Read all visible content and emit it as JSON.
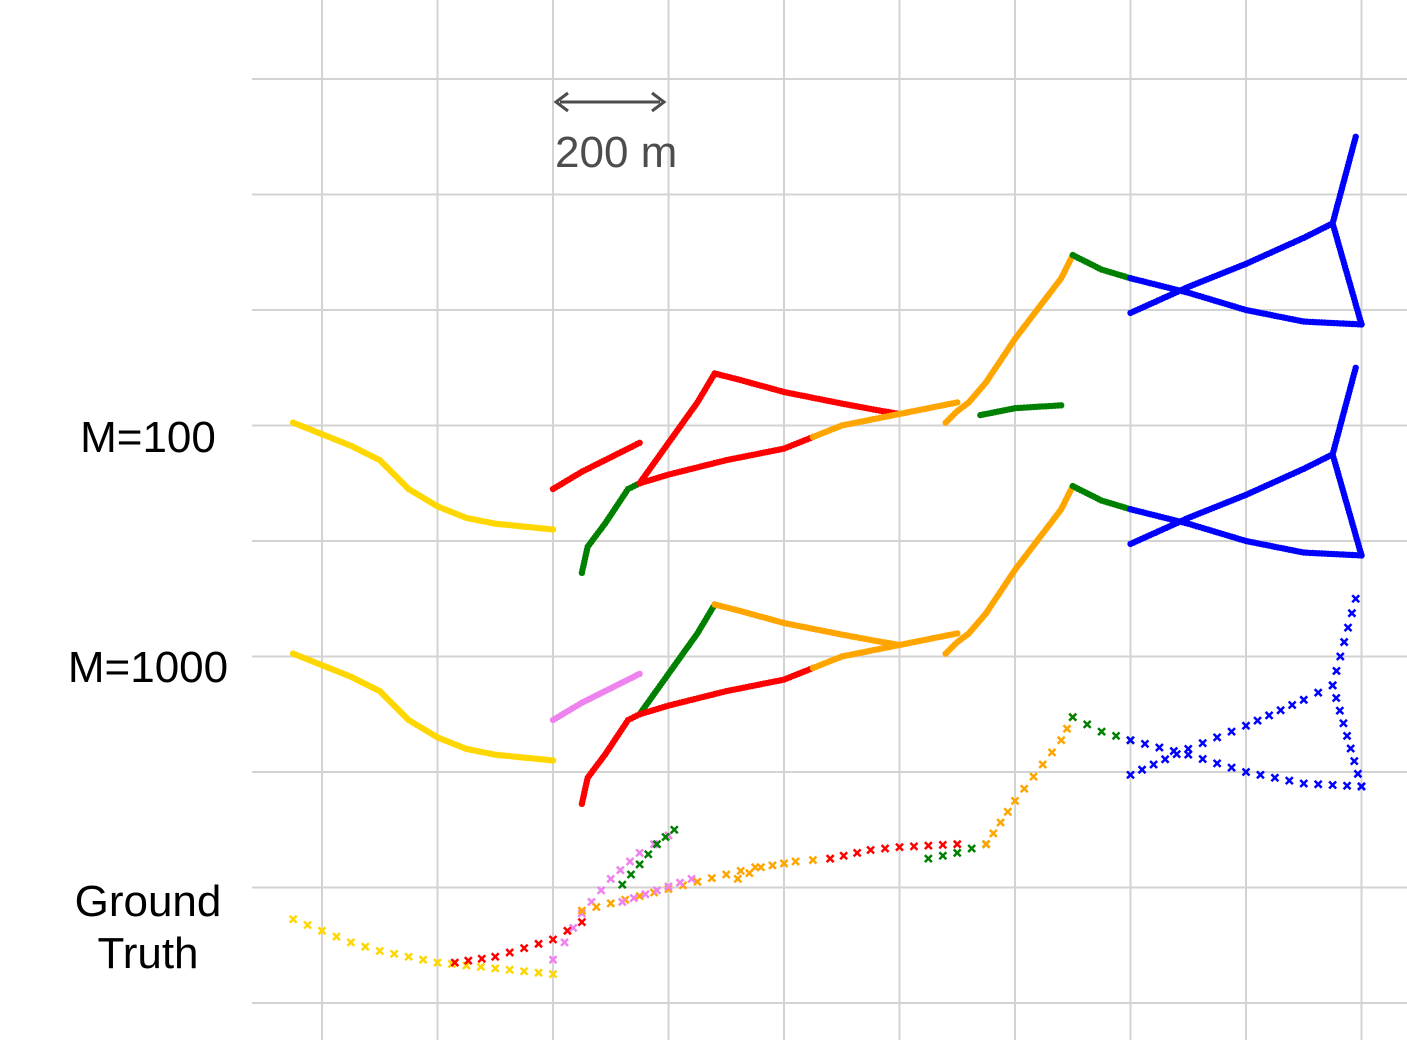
{
  "chart_data": {
    "type": "scatter",
    "title": "",
    "xlabel": "",
    "ylabel": "",
    "scale_bar": {
      "label": "200 m",
      "length_m": 200
    },
    "panels": [
      {
        "label": "M=100",
        "marker": "dot",
        "offset_m": 800,
        "segments": [
          {
            "color": "yellow",
            "points": [
              [
                -50,
                205
              ],
              [
                0,
                185
              ],
              [
                50,
                165
              ],
              [
                100,
                140
              ],
              [
                150,
                90
              ],
              [
                200,
                60
              ],
              [
                250,
                40
              ],
              [
                300,
                30
              ],
              [
                350,
                25
              ],
              [
                400,
                20
              ]
            ]
          },
          {
            "color": "red",
            "points": [
              [
                400,
                90
              ],
              [
                450,
                120
              ],
              [
                500,
                145
              ],
              [
                550,
                170
              ]
            ]
          },
          {
            "color": "green",
            "points": [
              [
                450,
                -55
              ],
              [
                460,
                -10
              ],
              [
                490,
                30
              ],
              [
                530,
                90
              ],
              [
                550,
                100
              ]
            ]
          },
          {
            "color": "red",
            "points": [
              [
                550,
                100
              ],
              [
                600,
                170
              ],
              [
                650,
                240
              ],
              [
                680,
                290
              ]
            ]
          },
          {
            "color": "red",
            "points": [
              [
                680,
                290
              ],
              [
                720,
                280
              ],
              [
                800,
                258
              ],
              [
                900,
                238
              ],
              [
                970,
                225
              ],
              [
                1000,
                220
              ]
            ]
          },
          {
            "color": "red",
            "points": [
              [
                550,
                100
              ],
              [
                600,
                115
              ],
              [
                700,
                140
              ],
              [
                800,
                160
              ],
              [
                850,
                180
              ]
            ]
          },
          {
            "color": "orange",
            "points": [
              [
                850,
                180
              ],
              [
                900,
                200
              ],
              [
                1000,
                220
              ],
              [
                1100,
                240
              ]
            ]
          },
          {
            "color": "orange",
            "points": [
              [
                1080,
                205
              ],
              [
                1100,
                225
              ],
              [
                1120,
                240
              ],
              [
                1150,
                275
              ]
            ]
          },
          {
            "color": "green",
            "points": [
              [
                1140,
                218
              ],
              [
                1200,
                230
              ],
              [
                1280,
                235
              ]
            ]
          },
          {
            "color": "orange",
            "points": [
              [
                1150,
                275
              ],
              [
                1200,
                350
              ],
              [
                1280,
                455
              ],
              [
                1300,
                495
              ]
            ]
          },
          {
            "color": "green",
            "points": [
              [
                1300,
                495
              ],
              [
                1350,
                470
              ],
              [
                1400,
                455
              ]
            ]
          },
          {
            "color": "blue",
            "points": [
              [
                1400,
                455
              ],
              [
                1500,
                430
              ],
              [
                1600,
                400
              ],
              [
                1700,
                380
              ],
              [
                1800,
                375
              ]
            ]
          },
          {
            "color": "blue",
            "points": [
              [
                1400,
                395
              ],
              [
                1500,
                440
              ],
              [
                1600,
                480
              ],
              [
                1700,
                525
              ],
              [
                1750,
                550
              ]
            ]
          },
          {
            "color": "blue",
            "points": [
              [
                1790,
                700
              ],
              [
                1750,
                550
              ],
              [
                1800,
                375
              ]
            ]
          }
        ]
      },
      {
        "label": "M=1000",
        "marker": "dot",
        "offset_m": 400,
        "segments": [
          {
            "color": "yellow",
            "points": [
              [
                -50,
                205
              ],
              [
                0,
                185
              ],
              [
                50,
                165
              ],
              [
                100,
                140
              ],
              [
                150,
                90
              ],
              [
                200,
                60
              ],
              [
                250,
                40
              ],
              [
                300,
                30
              ],
              [
                350,
                25
              ],
              [
                400,
                20
              ]
            ]
          },
          {
            "color": "violet",
            "points": [
              [
                400,
                90
              ],
              [
                450,
                120
              ],
              [
                500,
                145
              ],
              [
                550,
                170
              ]
            ]
          },
          {
            "color": "red",
            "points": [
              [
                450,
                -55
              ],
              [
                460,
                -10
              ],
              [
                490,
                30
              ],
              [
                530,
                90
              ],
              [
                550,
                100
              ]
            ]
          },
          {
            "color": "green",
            "points": [
              [
                550,
                100
              ],
              [
                600,
                170
              ],
              [
                650,
                240
              ],
              [
                680,
                290
              ]
            ]
          },
          {
            "color": "orange",
            "points": [
              [
                680,
                290
              ],
              [
                720,
                280
              ],
              [
                800,
                258
              ],
              [
                900,
                238
              ],
              [
                970,
                225
              ],
              [
                1000,
                220
              ]
            ]
          },
          {
            "color": "red",
            "points": [
              [
                550,
                100
              ],
              [
                600,
                115
              ],
              [
                700,
                140
              ],
              [
                800,
                160
              ],
              [
                850,
                180
              ]
            ]
          },
          {
            "color": "orange",
            "points": [
              [
                850,
                180
              ],
              [
                900,
                200
              ],
              [
                1000,
                220
              ],
              [
                1100,
                240
              ]
            ]
          },
          {
            "color": "orange",
            "points": [
              [
                1080,
                205
              ],
              [
                1100,
                225
              ],
              [
                1120,
                240
              ],
              [
                1150,
                275
              ]
            ]
          },
          {
            "color": "orange",
            "points": [
              [
                1150,
                275
              ],
              [
                1200,
                350
              ],
              [
                1280,
                455
              ],
              [
                1300,
                495
              ]
            ]
          },
          {
            "color": "green",
            "points": [
              [
                1300,
                495
              ],
              [
                1350,
                470
              ],
              [
                1400,
                455
              ]
            ]
          },
          {
            "color": "blue",
            "points": [
              [
                1400,
                455
              ],
              [
                1500,
                430
              ],
              [
                1600,
                400
              ],
              [
                1700,
                380
              ],
              [
                1800,
                375
              ]
            ]
          },
          {
            "color": "blue",
            "points": [
              [
                1400,
                395
              ],
              [
                1500,
                440
              ],
              [
                1600,
                480
              ],
              [
                1700,
                525
              ],
              [
                1750,
                550
              ]
            ]
          },
          {
            "color": "blue",
            "points": [
              [
                1790,
                700
              ],
              [
                1750,
                550
              ],
              [
                1800,
                375
              ]
            ]
          }
        ]
      },
      {
        "label": "Ground\nTruth",
        "marker": "cross",
        "offset_m": 0,
        "segments": [
          {
            "color": "yellow",
            "points": [
              [
                -50,
                145
              ],
              [
                0,
                125
              ],
              [
                50,
                105
              ],
              [
                100,
                90
              ],
              [
                150,
                80
              ],
              [
                200,
                70
              ],
              [
                250,
                65
              ],
              [
                300,
                60
              ],
              [
                350,
                55
              ],
              [
                400,
                50
              ]
            ]
          },
          {
            "color": "red",
            "points": [
              [
                230,
                70
              ],
              [
                300,
                80
              ],
              [
                400,
                110
              ],
              [
                450,
                140
              ]
            ]
          },
          {
            "color": "violet",
            "points": [
              [
                400,
                75
              ],
              [
                420,
                105
              ],
              [
                450,
                155
              ],
              [
                500,
                215
              ],
              [
                550,
                260
              ],
              [
                600,
                290
              ]
            ]
          },
          {
            "color": "green",
            "points": [
              [
                520,
                205
              ],
              [
                550,
                240
              ],
              [
                580,
                275
              ],
              [
                610,
                300
              ]
            ]
          },
          {
            "color": "orange",
            "points": [
              [
                450,
                160
              ],
              [
                550,
                185
              ],
              [
                650,
                210
              ],
              [
                750,
                235
              ]
            ]
          },
          {
            "color": "violet",
            "points": [
              [
                520,
                175
              ],
              [
                580,
                195
              ],
              [
                640,
                215
              ]
            ]
          },
          {
            "color": "orange",
            "points": [
              [
                720,
                215
              ],
              [
                760,
                235
              ],
              [
                820,
                245
              ],
              [
                880,
                250
              ]
            ]
          },
          {
            "color": "red",
            "points": [
              [
                880,
                250
              ],
              [
                950,
                265
              ],
              [
                1000,
                270
              ],
              [
                1100,
                275
              ]
            ]
          },
          {
            "color": "green",
            "points": [
              [
                1050,
                250
              ],
              [
                1100,
                260
              ],
              [
                1150,
                275
              ]
            ]
          },
          {
            "color": "orange",
            "points": [
              [
                1150,
                275
              ],
              [
                1200,
                350
              ],
              [
                1280,
                455
              ],
              [
                1300,
                495
              ]
            ]
          },
          {
            "color": "green",
            "points": [
              [
                1300,
                495
              ],
              [
                1350,
                470
              ],
              [
                1400,
                455
              ]
            ]
          },
          {
            "color": "blue",
            "points": [
              [
                1400,
                455
              ],
              [
                1500,
                430
              ],
              [
                1600,
                400
              ],
              [
                1700,
                380
              ],
              [
                1800,
                375
              ]
            ]
          },
          {
            "color": "blue",
            "points": [
              [
                1400,
                395
              ],
              [
                1500,
                440
              ],
              [
                1600,
                480
              ],
              [
                1700,
                525
              ],
              [
                1750,
                550
              ]
            ]
          },
          {
            "color": "blue",
            "points": [
              [
                1790,
                700
              ],
              [
                1750,
                550
              ],
              [
                1800,
                375
              ]
            ]
          }
        ]
      }
    ],
    "grid": true,
    "colors": {
      "yellow": "#ffd700",
      "red": "#ff0000",
      "green": "#008000",
      "orange": "#ffa500",
      "violet": "#ee82ee",
      "blue": "#0000ff",
      "grid": "#d3d3d3",
      "scale": "#4d4d4d"
    }
  }
}
